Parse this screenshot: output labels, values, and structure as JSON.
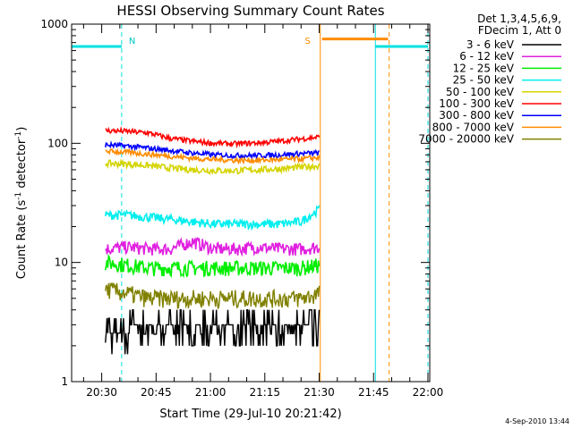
{
  "chart_data": {
    "type": "line",
    "title": "HESSI Observing Summary Count Rates",
    "xlabel": "Start Time (29-Jul-10 20:21:42)",
    "ylabel_main": "Count Rate (s",
    "ylabel_sup1": "-1",
    "ylabel_mid": " detector",
    "ylabel_sup2": "-1",
    "ylabel_end": ")",
    "y_scale": "log",
    "ylim": [
      1,
      1000
    ],
    "xlim_minutes_after_2021": [
      0.7,
      99.5
    ],
    "x_tick_labels": [
      "20:30",
      "20:45",
      "21:00",
      "21:15",
      "21:30",
      "21:45",
      "22:00"
    ],
    "x_tick_minutes": [
      9,
      24,
      39,
      54,
      69,
      84,
      99
    ],
    "y_tick_labels": [
      "1",
      "10",
      "100",
      "1000"
    ],
    "y_tick_values": [
      1,
      10,
      100,
      1000
    ],
    "grid": false,
    "legend_placement": "top-right",
    "legend_header": [
      "Det 1,3,4,5,6,9,",
      "FDecim 1, Att 0"
    ],
    "series": [
      {
        "name": "3 - 6 keV",
        "color": "#000000",
        "values": [
          2.5,
          3,
          3,
          3,
          3,
          3,
          3,
          3,
          3,
          3,
          3.5
        ]
      },
      {
        "name": "6 - 12 keV",
        "color": "#e020e0",
        "values": [
          13,
          13.5,
          13,
          13,
          15,
          13,
          13,
          13.5,
          13,
          13,
          13.5
        ]
      },
      {
        "name": "12 - 25 keV",
        "color": "#00ee00",
        "values": [
          10,
          9.5,
          9,
          9,
          9,
          9,
          9,
          9,
          9,
          9,
          9.5
        ]
      },
      {
        "name": "25 - 50 keV",
        "color": "#00eeee",
        "values": [
          25,
          25,
          24,
          23,
          22,
          21,
          21,
          21,
          21,
          22,
          28
        ]
      },
      {
        "name": "50 - 100 keV",
        "color": "#d4d400",
        "values": [
          68,
          67,
          65,
          62,
          60,
          59,
          59,
          60,
          61,
          63,
          65
        ]
      },
      {
        "name": "100 - 300 keV",
        "color": "#ff0000",
        "values": [
          128,
          126,
          122,
          110,
          104,
          100,
          99,
          101,
          104,
          109,
          113
        ]
      },
      {
        "name": "300 - 800 keV",
        "color": "#0000ff",
        "values": [
          97,
          95,
          91,
          87,
          83,
          80,
          79,
          79,
          80,
          82,
          83
        ]
      },
      {
        "name": "800 - 7000 keV",
        "color": "#ff8c00",
        "values": [
          86,
          84,
          81,
          78,
          75,
          73,
          72,
          72,
          73,
          74,
          76
        ]
      },
      {
        "name": "7000 - 20000 keV",
        "color": "#808000",
        "values": [
          6,
          5.5,
          5,
          5,
          5,
          5,
          5,
          5,
          5,
          5,
          5.5
        ]
      }
    ],
    "series_x_minutes": [
      10,
      16,
      22,
      28,
      34,
      40,
      46,
      52,
      58,
      64,
      69
    ],
    "annotations": [
      {
        "text": "N",
        "color": "#00c8c8",
        "x_minute": 14.5
      },
      {
        "text": "S",
        "color": "#ff8c00",
        "x_minute": 68
      }
    ],
    "night_bars": [
      {
        "color": "#00e0e0",
        "x_start": 0.7,
        "x_end": 14.5,
        "y": 650
      },
      {
        "color": "#00e0e0",
        "x_start": 84.5,
        "x_end": 99,
        "y": 650
      }
    ],
    "saa_bar": {
      "color": "#ff8c00",
      "x_start": 69.8,
      "x_end": 88,
      "y": 750
    },
    "vertical_lines": [
      {
        "x_minute": 0.7,
        "color": "#00e0e0",
        "style": "solid"
      },
      {
        "x_minute": 14.5,
        "color": "#00e0e0",
        "style": "dashed"
      },
      {
        "x_minute": 69.3,
        "color": "#ff8c00",
        "style": "solid"
      },
      {
        "x_minute": 84.5,
        "color": "#00e0e0",
        "style": "solid"
      },
      {
        "x_minute": 88.3,
        "color": "#ff8c00",
        "style": "dashed"
      },
      {
        "x_minute": 99,
        "color": "#00e0e0",
        "style": "dashed"
      }
    ],
    "data_start_minute": 10
  },
  "footer_date": "4-Sep-2010 13:44"
}
